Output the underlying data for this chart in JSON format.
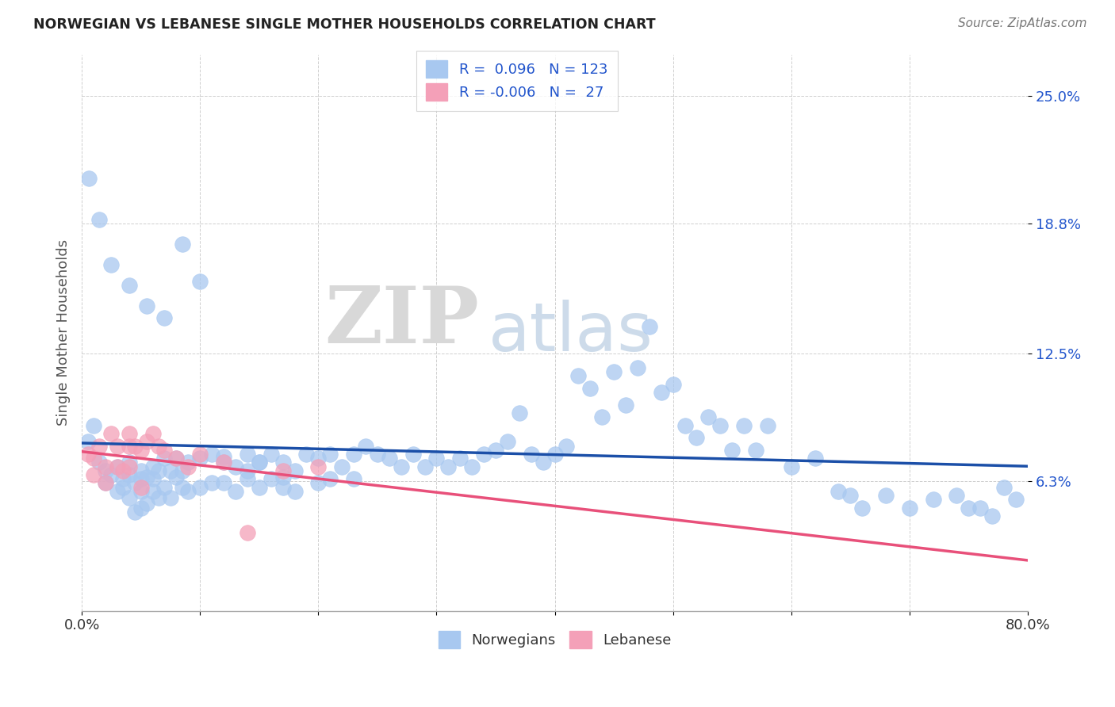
{
  "title": "NORWEGIAN VS LEBANESE SINGLE MOTHER HOUSEHOLDS CORRELATION CHART",
  "source": "Source: ZipAtlas.com",
  "ylabel": "Single Mother Households",
  "xlim": [
    0.0,
    0.8
  ],
  "ylim": [
    0.0,
    0.27
  ],
  "yticks": [
    0.063,
    0.125,
    0.188,
    0.25
  ],
  "ytick_labels": [
    "6.3%",
    "12.5%",
    "18.8%",
    "25.0%"
  ],
  "xticks": [
    0.0,
    0.1,
    0.2,
    0.3,
    0.4,
    0.5,
    0.6,
    0.7,
    0.8
  ],
  "xtick_labels": [
    "0.0%",
    "",
    "",
    "",
    "",
    "",
    "",
    "",
    "80.0%"
  ],
  "norwegian_color": "#A8C8F0",
  "lebanese_color": "#F4A0B8",
  "trendline_norwegian_color": "#1B4FA8",
  "trendline_lebanese_color": "#E8507A",
  "R_norwegian": "0.096",
  "N_norwegian": "123",
  "R_lebanese": "-0.006",
  "N_lebanese": "27",
  "background_color": "#ffffff",
  "watermark_zip": "ZIP",
  "watermark_atlas": "atlas",
  "norwegians_x": [
    0.005,
    0.01,
    0.015,
    0.02,
    0.02,
    0.025,
    0.03,
    0.03,
    0.035,
    0.035,
    0.04,
    0.04,
    0.04,
    0.045,
    0.045,
    0.05,
    0.05,
    0.05,
    0.05,
    0.055,
    0.055,
    0.06,
    0.06,
    0.06,
    0.065,
    0.065,
    0.07,
    0.07,
    0.075,
    0.075,
    0.08,
    0.08,
    0.085,
    0.085,
    0.09,
    0.09,
    0.1,
    0.1,
    0.11,
    0.11,
    0.12,
    0.12,
    0.13,
    0.13,
    0.14,
    0.14,
    0.15,
    0.15,
    0.16,
    0.16,
    0.17,
    0.17,
    0.18,
    0.18,
    0.19,
    0.2,
    0.2,
    0.21,
    0.21,
    0.22,
    0.23,
    0.23,
    0.24,
    0.25,
    0.26,
    0.27,
    0.28,
    0.29,
    0.3,
    0.31,
    0.32,
    0.33,
    0.34,
    0.35,
    0.36,
    0.37,
    0.38,
    0.39,
    0.4,
    0.41,
    0.42,
    0.43,
    0.44,
    0.45,
    0.46,
    0.47,
    0.48,
    0.49,
    0.5,
    0.51,
    0.52,
    0.53,
    0.54,
    0.55,
    0.56,
    0.57,
    0.58,
    0.6,
    0.62,
    0.64,
    0.65,
    0.66,
    0.68,
    0.7,
    0.72,
    0.74,
    0.75,
    0.76,
    0.77,
    0.78,
    0.79,
    0.006,
    0.015,
    0.025,
    0.04,
    0.055,
    0.07,
    0.085,
    0.1,
    0.12,
    0.14,
    0.15,
    0.17
  ],
  "norwegians_y": [
    0.082,
    0.09,
    0.072,
    0.068,
    0.062,
    0.066,
    0.07,
    0.058,
    0.064,
    0.06,
    0.066,
    0.072,
    0.055,
    0.062,
    0.048,
    0.064,
    0.068,
    0.058,
    0.05,
    0.065,
    0.052,
    0.064,
    0.07,
    0.058,
    0.068,
    0.055,
    0.074,
    0.06,
    0.068,
    0.055,
    0.065,
    0.074,
    0.06,
    0.068,
    0.072,
    0.058,
    0.074,
    0.06,
    0.076,
    0.062,
    0.072,
    0.062,
    0.07,
    0.058,
    0.076,
    0.064,
    0.072,
    0.06,
    0.076,
    0.064,
    0.072,
    0.06,
    0.068,
    0.058,
    0.076,
    0.074,
    0.062,
    0.076,
    0.064,
    0.07,
    0.076,
    0.064,
    0.08,
    0.076,
    0.074,
    0.07,
    0.076,
    0.07,
    0.074,
    0.07,
    0.074,
    0.07,
    0.076,
    0.078,
    0.082,
    0.096,
    0.076,
    0.072,
    0.076,
    0.08,
    0.114,
    0.108,
    0.094,
    0.116,
    0.1,
    0.118,
    0.138,
    0.106,
    0.11,
    0.09,
    0.084,
    0.094,
    0.09,
    0.078,
    0.09,
    0.078,
    0.09,
    0.07,
    0.074,
    0.058,
    0.056,
    0.05,
    0.056,
    0.05,
    0.054,
    0.056,
    0.05,
    0.05,
    0.046,
    0.06,
    0.054,
    0.21,
    0.19,
    0.168,
    0.158,
    0.148,
    0.142,
    0.178,
    0.16,
    0.075,
    0.068,
    0.072,
    0.065
  ],
  "lebanese_x": [
    0.005,
    0.01,
    0.01,
    0.015,
    0.02,
    0.02,
    0.025,
    0.03,
    0.03,
    0.035,
    0.04,
    0.04,
    0.04,
    0.045,
    0.05,
    0.05,
    0.055,
    0.06,
    0.065,
    0.07,
    0.08,
    0.09,
    0.1,
    0.12,
    0.14,
    0.17,
    0.2
  ],
  "lebanese_y": [
    0.076,
    0.074,
    0.066,
    0.08,
    0.07,
    0.062,
    0.086,
    0.08,
    0.07,
    0.068,
    0.086,
    0.08,
    0.07,
    0.08,
    0.078,
    0.06,
    0.082,
    0.086,
    0.08,
    0.078,
    0.074,
    0.07,
    0.076,
    0.072,
    0.038,
    0.068,
    0.07
  ]
}
